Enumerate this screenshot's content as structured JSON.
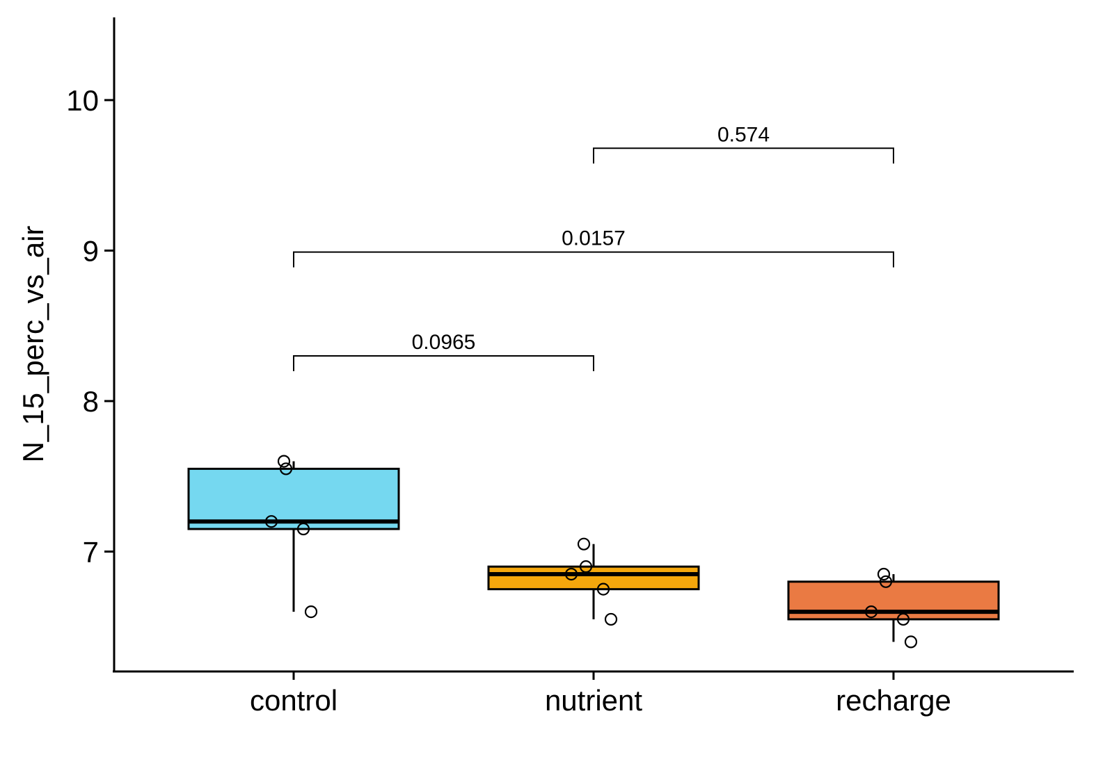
{
  "chart_data": {
    "type": "box",
    "title": "",
    "xlabel": "",
    "ylabel": "N_15_perc_vs_air",
    "categories": [
      "control",
      "nutrient",
      "recharge"
    ],
    "ylim": [
      6.25,
      10.55
    ],
    "yticks": [
      7,
      8,
      9,
      10
    ],
    "ytick_labels": [
      "7",
      "8",
      "9",
      "10"
    ],
    "grid": false,
    "legend": "none",
    "boxes": [
      {
        "category": "control",
        "color": "#75D8F0",
        "q1": 7.15,
        "median": 7.2,
        "q3": 7.55,
        "whisker_low": 6.6,
        "whisker_high": 7.6,
        "points": [
          7.6,
          7.55,
          7.2,
          7.15,
          6.6
        ]
      },
      {
        "category": "nutrient",
        "color": "#F5A70C",
        "q1": 6.75,
        "median": 6.85,
        "q3": 6.9,
        "whisker_low": 6.55,
        "whisker_high": 7.05,
        "points": [
          7.05,
          6.9,
          6.85,
          6.75,
          6.55
        ]
      },
      {
        "category": "recharge",
        "color": "#EA7A43",
        "q1": 6.55,
        "median": 6.6,
        "q3": 6.8,
        "whisker_low": 6.4,
        "whisker_high": 6.85,
        "points": [
          6.85,
          6.8,
          6.6,
          6.55,
          6.4
        ]
      }
    ],
    "comparisons": [
      {
        "from": "control",
        "to": "nutrient",
        "y": 8.3,
        "label": "0.0965"
      },
      {
        "from": "control",
        "to": "recharge",
        "y": 8.99,
        "label": "0.0157"
      },
      {
        "from": "nutrient",
        "to": "recharge",
        "y": 9.68,
        "label": "0.574"
      }
    ]
  }
}
